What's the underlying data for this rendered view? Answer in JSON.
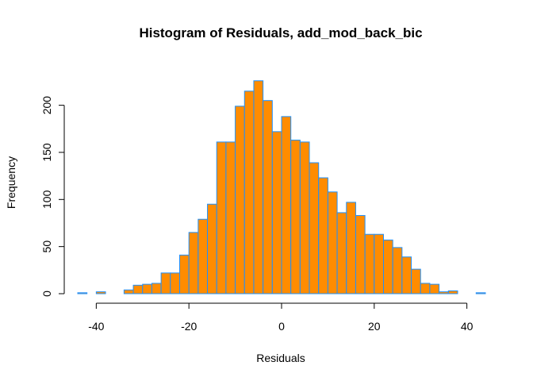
{
  "chart_data": {
    "type": "bar",
    "title": "Histogram of Residuals, add_mod_back_bic",
    "xlabel": "Residuals",
    "ylabel": "Frequency",
    "x_ticks": [
      "-40",
      "-20",
      "0",
      "20",
      "40"
    ],
    "y_ticks": [
      "0",
      "50",
      "100",
      "150",
      "200"
    ],
    "x_tick_values": [
      -40,
      -20,
      0,
      20,
      40
    ],
    "y_tick_values": [
      0,
      50,
      100,
      150,
      200
    ],
    "xlim": [
      -44,
      44
    ],
    "ylim": [
      0,
      230
    ],
    "bin_start": -44,
    "bin_width": 2,
    "values": [
      1,
      0,
      2,
      0,
      0,
      4,
      9,
      10,
      11,
      22,
      22,
      41,
      65,
      79,
      95,
      161,
      161,
      199,
      215,
      226,
      205,
      172,
      188,
      163,
      161,
      139,
      123,
      108,
      86,
      97,
      83,
      63,
      63,
      57,
      49,
      39,
      26,
      11,
      10,
      2,
      3,
      0,
      0,
      1
    ],
    "fill_color": "#FF8C00",
    "border_color": "#1E90FF",
    "grid": false,
    "legend": "none"
  }
}
